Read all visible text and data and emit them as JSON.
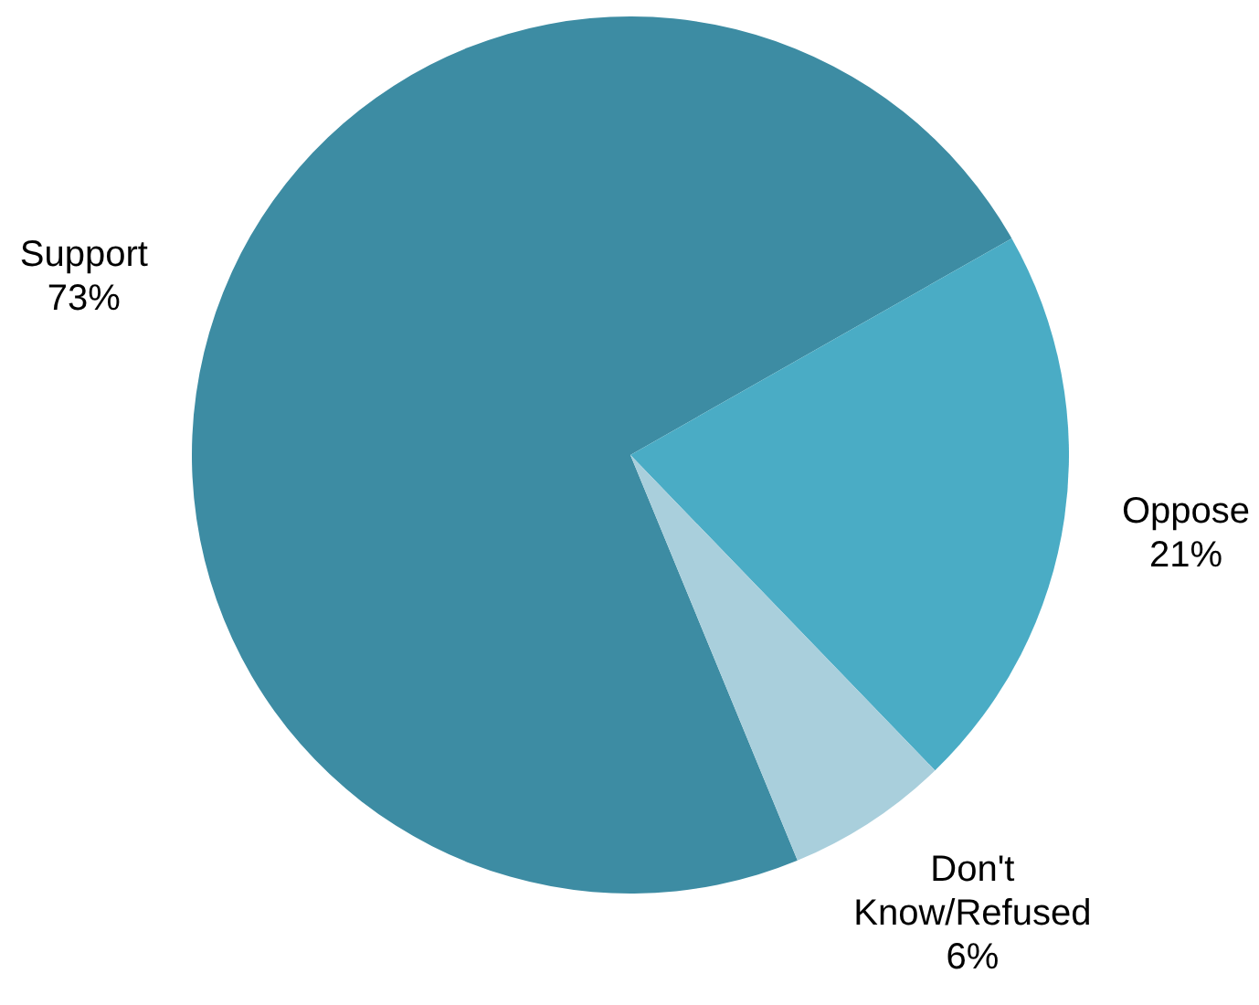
{
  "chart_data": {
    "type": "pie",
    "categories": [
      "Support",
      "Oppose",
      "Don't Know/Refused"
    ],
    "values": [
      73,
      21,
      6
    ],
    "value_labels": [
      "73%",
      "21%",
      "6%"
    ],
    "colors": [
      "#3d8ca3",
      "#4aacc5",
      "#a9cfdc"
    ]
  }
}
